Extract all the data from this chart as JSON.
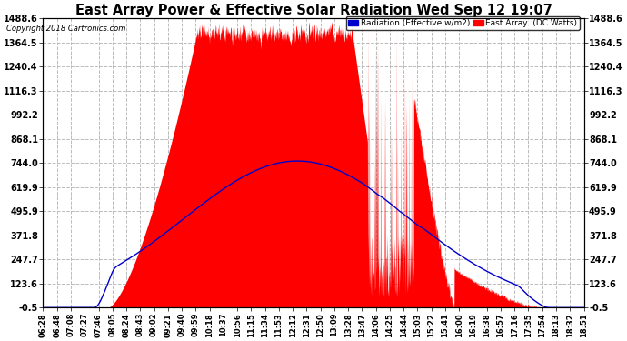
{
  "title": "East Array Power & Effective Solar Radiation Wed Sep 12 19:07",
  "copyright": "Copyright 2018 Cartronics.com",
  "legend_radiation": "Radiation (Effective w/m2)",
  "legend_east": "East Array  (DC Watts)",
  "y_ticks": [
    1488.6,
    1364.5,
    1240.4,
    1116.3,
    992.2,
    868.1,
    744.0,
    619.9,
    495.9,
    371.8,
    247.7,
    123.6,
    -0.5
  ],
  "ymin": -0.5,
  "ymax": 1488.6,
  "radiation_color": "#0000cc",
  "east_color": "#ff0000",
  "background_color": "#ffffff",
  "plot_bg_color": "#ffffff",
  "grid_color": "#bbbbbb",
  "title_color": "#000000",
  "x_labels": [
    "06:28",
    "06:48",
    "07:08",
    "07:27",
    "07:46",
    "08:05",
    "08:24",
    "08:43",
    "09:02",
    "09:21",
    "09:40",
    "09:59",
    "10:18",
    "10:37",
    "10:56",
    "11:15",
    "11:34",
    "11:53",
    "12:12",
    "12:31",
    "12:50",
    "13:09",
    "13:28",
    "13:47",
    "14:06",
    "14:25",
    "14:44",
    "15:03",
    "15:22",
    "15:41",
    "16:00",
    "16:19",
    "16:38",
    "16:57",
    "17:16",
    "17:35",
    "17:54",
    "18:13",
    "18:32",
    "18:51"
  ]
}
